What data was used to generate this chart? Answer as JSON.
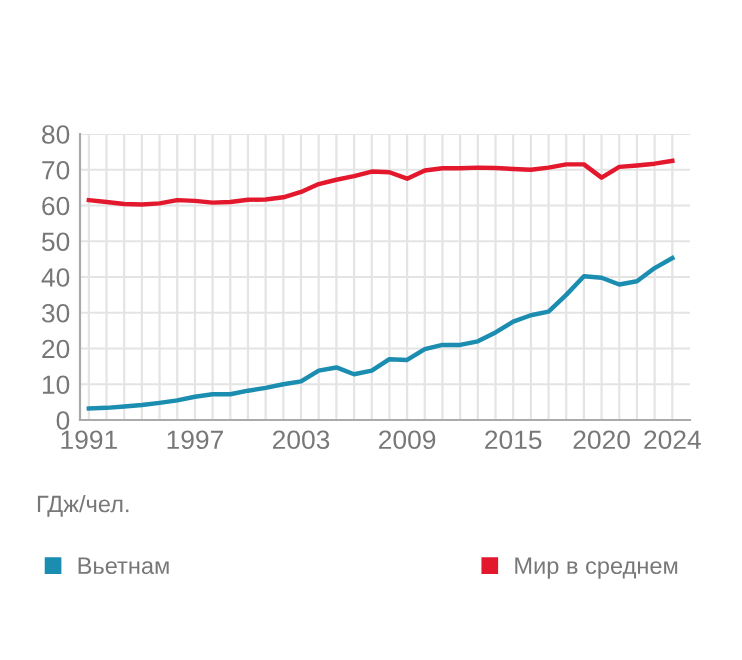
{
  "chart_data": {
    "type": "line",
    "ylabel": "ГДж/чел.",
    "x": [
      1991,
      1992,
      1993,
      1994,
      1995,
      1996,
      1997,
      1998,
      1999,
      2000,
      2001,
      2002,
      2003,
      2004,
      2005,
      2006,
      2007,
      2008,
      2009,
      2010,
      2011,
      2012,
      2013,
      2014,
      2015,
      2016,
      2017,
      2018,
      2019,
      2020,
      2021,
      2022,
      2023,
      2024
    ],
    "series": [
      {
        "name": "Вьетнам",
        "color": "#1a8db0",
        "values": [
          3.2,
          3.4,
          3.8,
          4.2,
          4.8,
          5.5,
          6.5,
          7.2,
          7.2,
          8.2,
          9.0,
          10.0,
          10.8,
          13.8,
          14.7,
          12.8,
          13.8,
          17.0,
          16.8,
          19.8,
          21.0,
          21.0,
          22.0,
          24.5,
          27.5,
          29.3,
          30.3,
          35.0,
          40.2,
          39.8,
          37.9,
          38.8,
          42.5,
          45.3
        ]
      },
      {
        "name": "Мир в среднем",
        "color": "#e3182d",
        "values": [
          61.5,
          61.0,
          60.4,
          60.3,
          60.6,
          61.5,
          61.3,
          60.8,
          61.0,
          61.6,
          61.7,
          62.3,
          63.8,
          66.0,
          67.2,
          68.2,
          69.5,
          69.3,
          67.5,
          69.8,
          70.4,
          70.4,
          70.6,
          70.5,
          70.2,
          70.0,
          70.6,
          71.5,
          71.5,
          67.8,
          70.8,
          71.2,
          71.7,
          72.5
        ]
      }
    ],
    "xlim": [
      1990.5,
      2025
    ],
    "xticks": [
      1991,
      1997,
      2003,
      2009,
      2015,
      2020,
      2024
    ],
    "ylim": [
      0,
      80
    ],
    "yticks": [
      0,
      10,
      20,
      30,
      40,
      50,
      60,
      70,
      80
    ],
    "grid": true,
    "legend": "bottom",
    "marker": "none",
    "line_style": "solid"
  }
}
